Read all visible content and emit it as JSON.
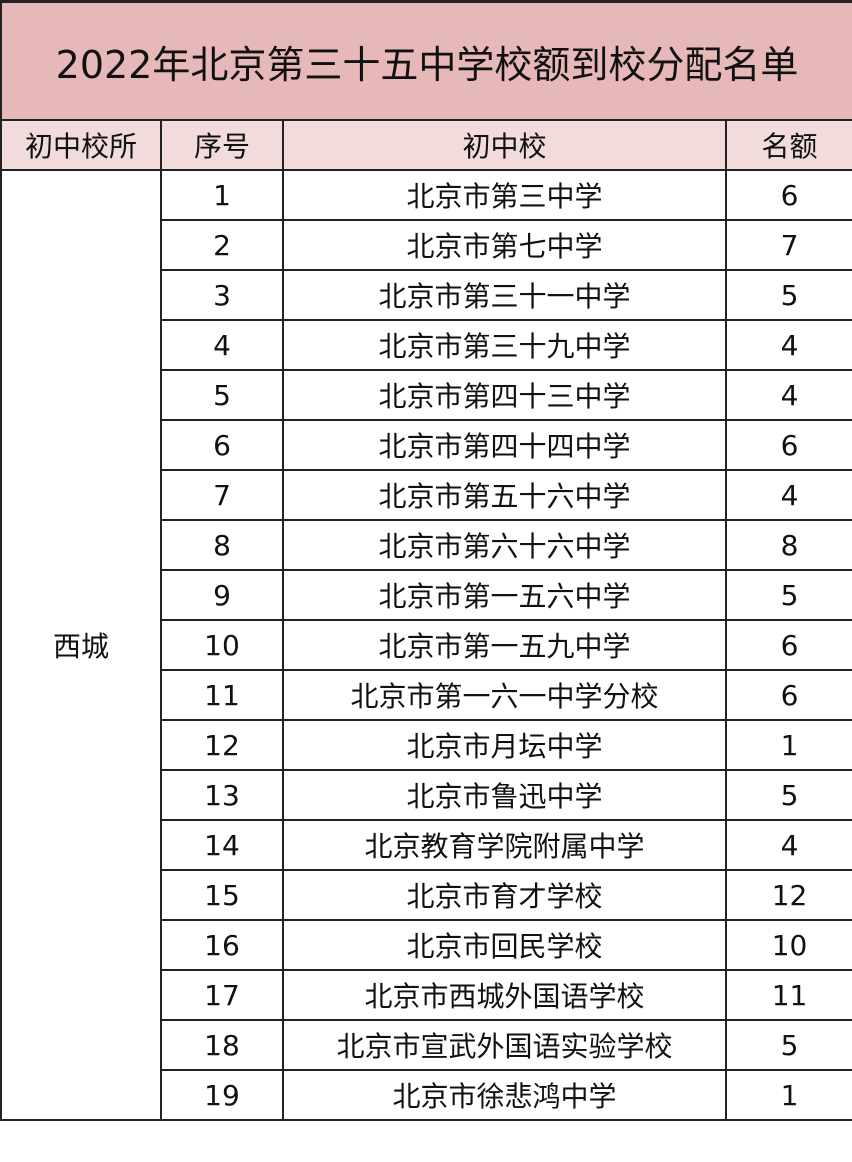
{
  "title": "2022年北京第三十五中学校额到校分配名单",
  "headers": [
    "初中校所",
    "序号",
    "初中校",
    "名额"
  ],
  "district": "西城",
  "rows": [
    {
      "no": "1",
      "school": "北京市第三中学",
      "quota": "6"
    },
    {
      "no": "2",
      "school": "北京市第七中学",
      "quota": "7"
    },
    {
      "no": "3",
      "school": "北京市第三十一中学",
      "quota": "5"
    },
    {
      "no": "4",
      "school": "北京市第三十九中学",
      "quota": "4"
    },
    {
      "no": "5",
      "school": "北京市第四十三中学",
      "quota": "4"
    },
    {
      "no": "6",
      "school": "北京市第四十四中学",
      "quota": "6"
    },
    {
      "no": "7",
      "school": "北京市第五十六中学",
      "quota": "4"
    },
    {
      "no": "8",
      "school": "北京市第六十六中学",
      "quota": "8"
    },
    {
      "no": "9",
      "school": "北京市第一五六中学",
      "quota": "5"
    },
    {
      "no": "10",
      "school": "北京市第一五九中学",
      "quota": "6"
    },
    {
      "no": "11",
      "school": "北京市第一六一中学分校",
      "quota": "6"
    },
    {
      "no": "12",
      "school": "北京市月坛中学",
      "quota": "1"
    },
    {
      "no": "13",
      "school": "北京市鲁迅中学",
      "quota": "5"
    },
    {
      "no": "14",
      "school": "北京教育学院附属中学",
      "quota": "4"
    },
    {
      "no": "15",
      "school": "北京市育才学校",
      "quota": "12"
    },
    {
      "no": "16",
      "school": "北京市回民学校",
      "quota": "10"
    },
    {
      "no": "17",
      "school": "北京市西城外国语学校",
      "quota": "11"
    },
    {
      "no": "18",
      "school": "北京市宣武外国语实验学校",
      "quota": "5"
    },
    {
      "no": "19",
      "school": "北京市徐悲鸿中学",
      "quota": "1"
    }
  ]
}
